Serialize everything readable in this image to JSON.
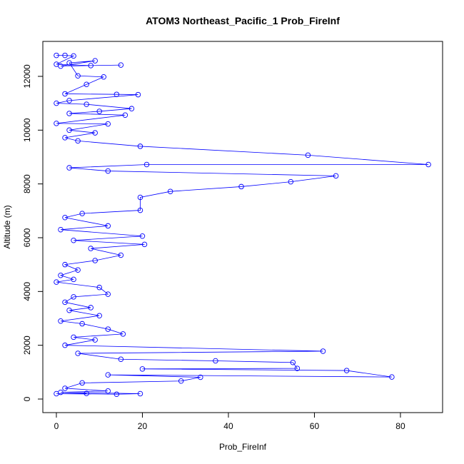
{
  "chart_data": {
    "type": "line",
    "title": "ATOM3 Northeast_Pacific_1 Prob_FireInf",
    "x_label": "Prob_FireInf",
    "y_label": "Altitude (m)",
    "x": [
      0,
      2,
      4,
      0,
      8,
      15,
      1,
      9,
      3,
      5,
      11,
      7,
      2,
      14,
      19,
      3,
      0,
      7,
      17.5,
      10,
      3,
      16,
      0,
      12,
      3,
      9,
      2,
      5,
      19.5,
      58.5,
      86.5,
      21,
      3,
      12,
      65,
      54.5,
      43,
      26.5,
      19.5,
      19.5,
      6,
      2,
      12,
      1,
      20,
      4,
      20.5,
      8,
      15,
      9,
      2,
      5,
      1,
      4,
      0,
      10,
      12,
      4,
      2,
      8,
      3,
      10,
      1,
      6,
      12,
      15.5,
      4,
      9,
      2,
      62,
      5,
      15,
      37,
      55,
      56,
      20,
      67.5,
      78,
      12,
      33.5,
      29,
      6,
      2,
      12,
      1,
      19.5,
      14,
      0,
      7
    ],
    "series": [
      {
        "color": "#0000ff",
        "values": [
          12780,
          12780,
          12760,
          12450,
          12400,
          12420,
          12380,
          12580,
          12500,
          12020,
          11980,
          11700,
          11350,
          11330,
          11320,
          11100,
          11000,
          10960,
          10800,
          10700,
          10620,
          10560,
          10250,
          10230,
          10000,
          9900,
          9720,
          9600,
          9400,
          9070,
          8720,
          8720,
          8600,
          8480,
          8300,
          8080,
          7900,
          7720,
          7500,
          7020,
          6900,
          6750,
          6440,
          6300,
          6060,
          5900,
          5750,
          5600,
          5350,
          5150,
          5000,
          4800,
          4600,
          4450,
          4350,
          4150,
          3900,
          3800,
          3600,
          3400,
          3300,
          3100,
          2900,
          2800,
          2600,
          2420,
          2300,
          2200,
          2000,
          1780,
          1700,
          1480,
          1420,
          1360,
          1140,
          1120,
          1060,
          820,
          900,
          810,
          670,
          600,
          400,
          300,
          250,
          200,
          180,
          200,
          210
        ]
      }
    ],
    "xlim": [
      -3.15,
      89.8
    ],
    "ylim": [
      -504,
      13300
    ],
    "xticks": [
      0,
      20,
      40,
      60,
      80
    ],
    "yticks": [
      0,
      2000,
      4000,
      6000,
      8000,
      10000,
      12000
    ]
  }
}
